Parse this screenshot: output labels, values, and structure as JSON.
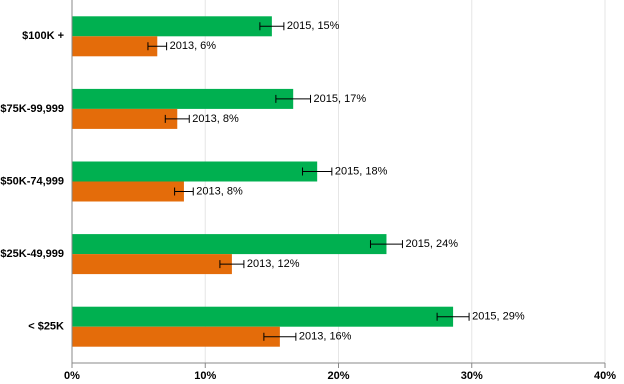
{
  "chart_data": {
    "type": "barh",
    "categories": [
      "$100K +",
      "$75K-99,999",
      "$50K-74,999",
      "$25K-49,999",
      "< $25K"
    ],
    "series": [
      {
        "color": "#00b050",
        "values": [
          15.0,
          16.6,
          18.4,
          23.6,
          28.6
        ],
        "errors": [
          0.9,
          1.3,
          1.1,
          1.2,
          1.2
        ],
        "value_labels": [
          "2015, 15%",
          "2015, 17%",
          "2015, 18%",
          "2015, 24%",
          "2015, 29%"
        ]
      },
      {
        "color": "#e46c0a",
        "values": [
          6.4,
          7.9,
          8.4,
          12.0,
          15.6
        ],
        "errors": [
          0.7,
          0.9,
          0.7,
          0.9,
          1.2
        ],
        "value_labels": [
          "2013, 6%",
          "2013, 8%",
          "2013, 8%",
          "2013, 12%",
          "2013, 16%"
        ]
      }
    ],
    "xlim": [
      0,
      40
    ],
    "xticks": [
      {
        "value": 0,
        "label": "0%"
      },
      {
        "value": 10,
        "label": "10%"
      },
      {
        "value": 20,
        "label": "20%"
      },
      {
        "value": 30,
        "label": "30%"
      },
      {
        "value": 40,
        "label": "40%"
      }
    ],
    "grid": true
  }
}
